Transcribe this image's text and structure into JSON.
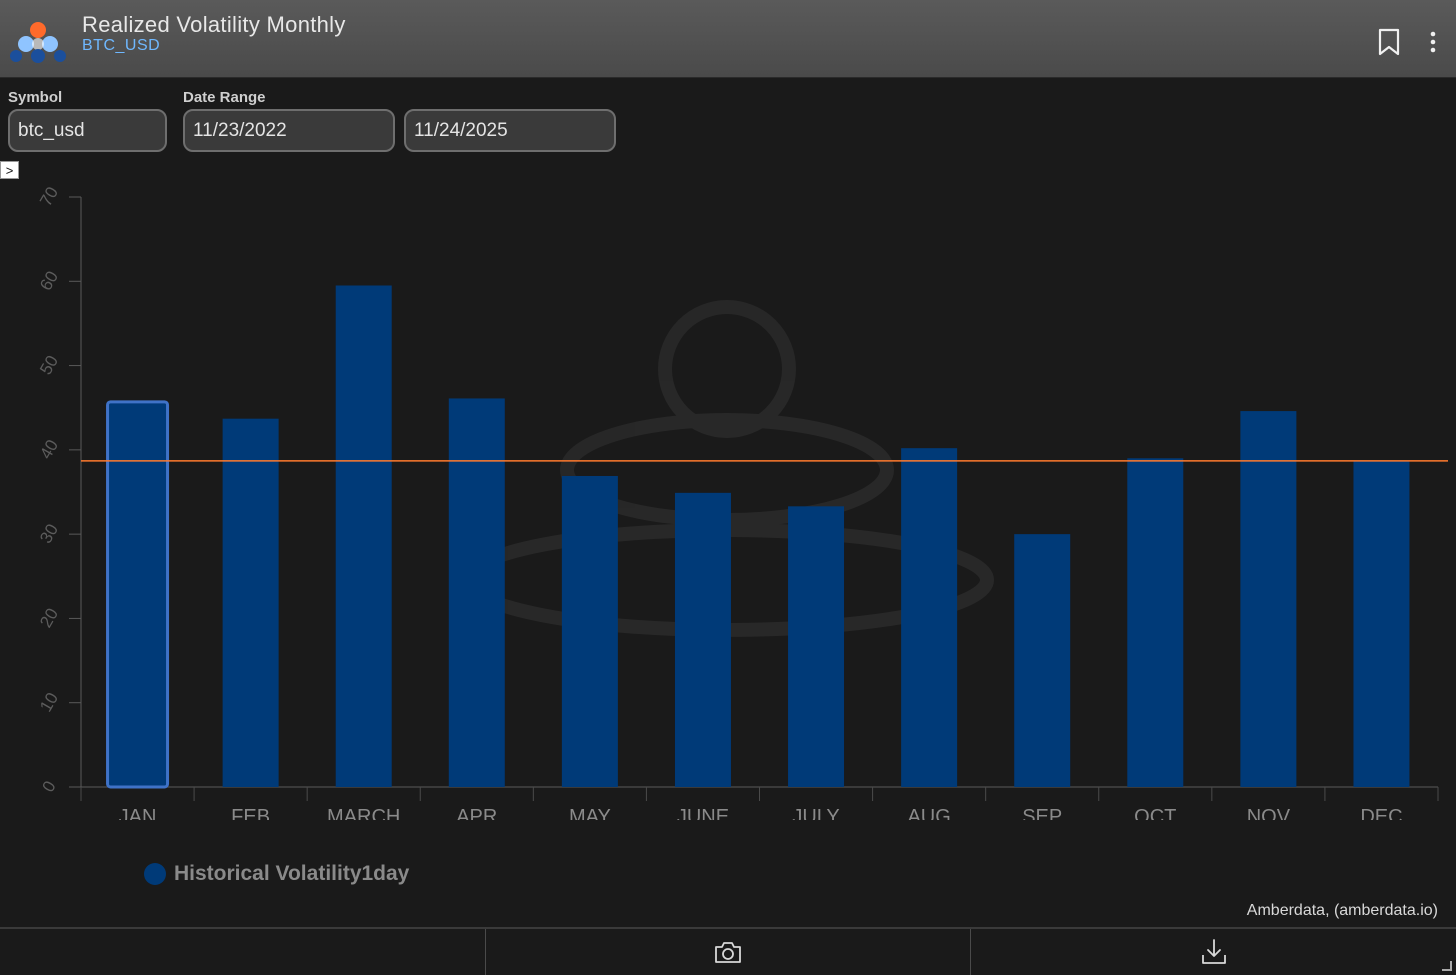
{
  "header": {
    "title": "Realized Volatility Monthly",
    "subtitle": "BTC_USD"
  },
  "filters": {
    "symbol_label": "Symbol",
    "symbol_value": "btc_usd",
    "date_range_label": "Date Range",
    "start_date": "11/23/2022",
    "end_date": "11/24/2025"
  },
  "icons": {
    "logo": "amberdata-logo-icon",
    "bookmark": "bookmark-icon",
    "more": "more-vertical-icon",
    "expand": "chevron-right-icon",
    "camera": "camera-icon",
    "download": "download-icon"
  },
  "colors": {
    "bar": "#003a78",
    "bar_highlight_border": "#3f72c7",
    "average_line": "#ff7a2e",
    "subtitle": "#6fb8ff"
  },
  "chart_data": {
    "type": "bar",
    "categories": [
      "JAN",
      "FEB",
      "MARCH",
      "APR",
      "MAY",
      "JUNE",
      "JULY",
      "AUG",
      "SEP",
      "OCT",
      "NOV",
      "DEC"
    ],
    "series": [
      {
        "name": "Historical Volatility1day",
        "values": [
          45.7,
          43.7,
          59.5,
          46.1,
          36.9,
          34.9,
          33.3,
          40.2,
          30.0,
          39.0,
          44.6,
          38.7
        ]
      }
    ],
    "reference_line": 38.7,
    "highlighted_category": "JAN",
    "ylim": [
      0,
      70
    ],
    "yticks": [
      0,
      10,
      20,
      30,
      40,
      50,
      60,
      70
    ],
    "grid": false,
    "legend": "bottom-left",
    "watermark": "amberdata"
  },
  "expand_glyph": ">",
  "credit": "Amberdata, (amberdata.io)"
}
